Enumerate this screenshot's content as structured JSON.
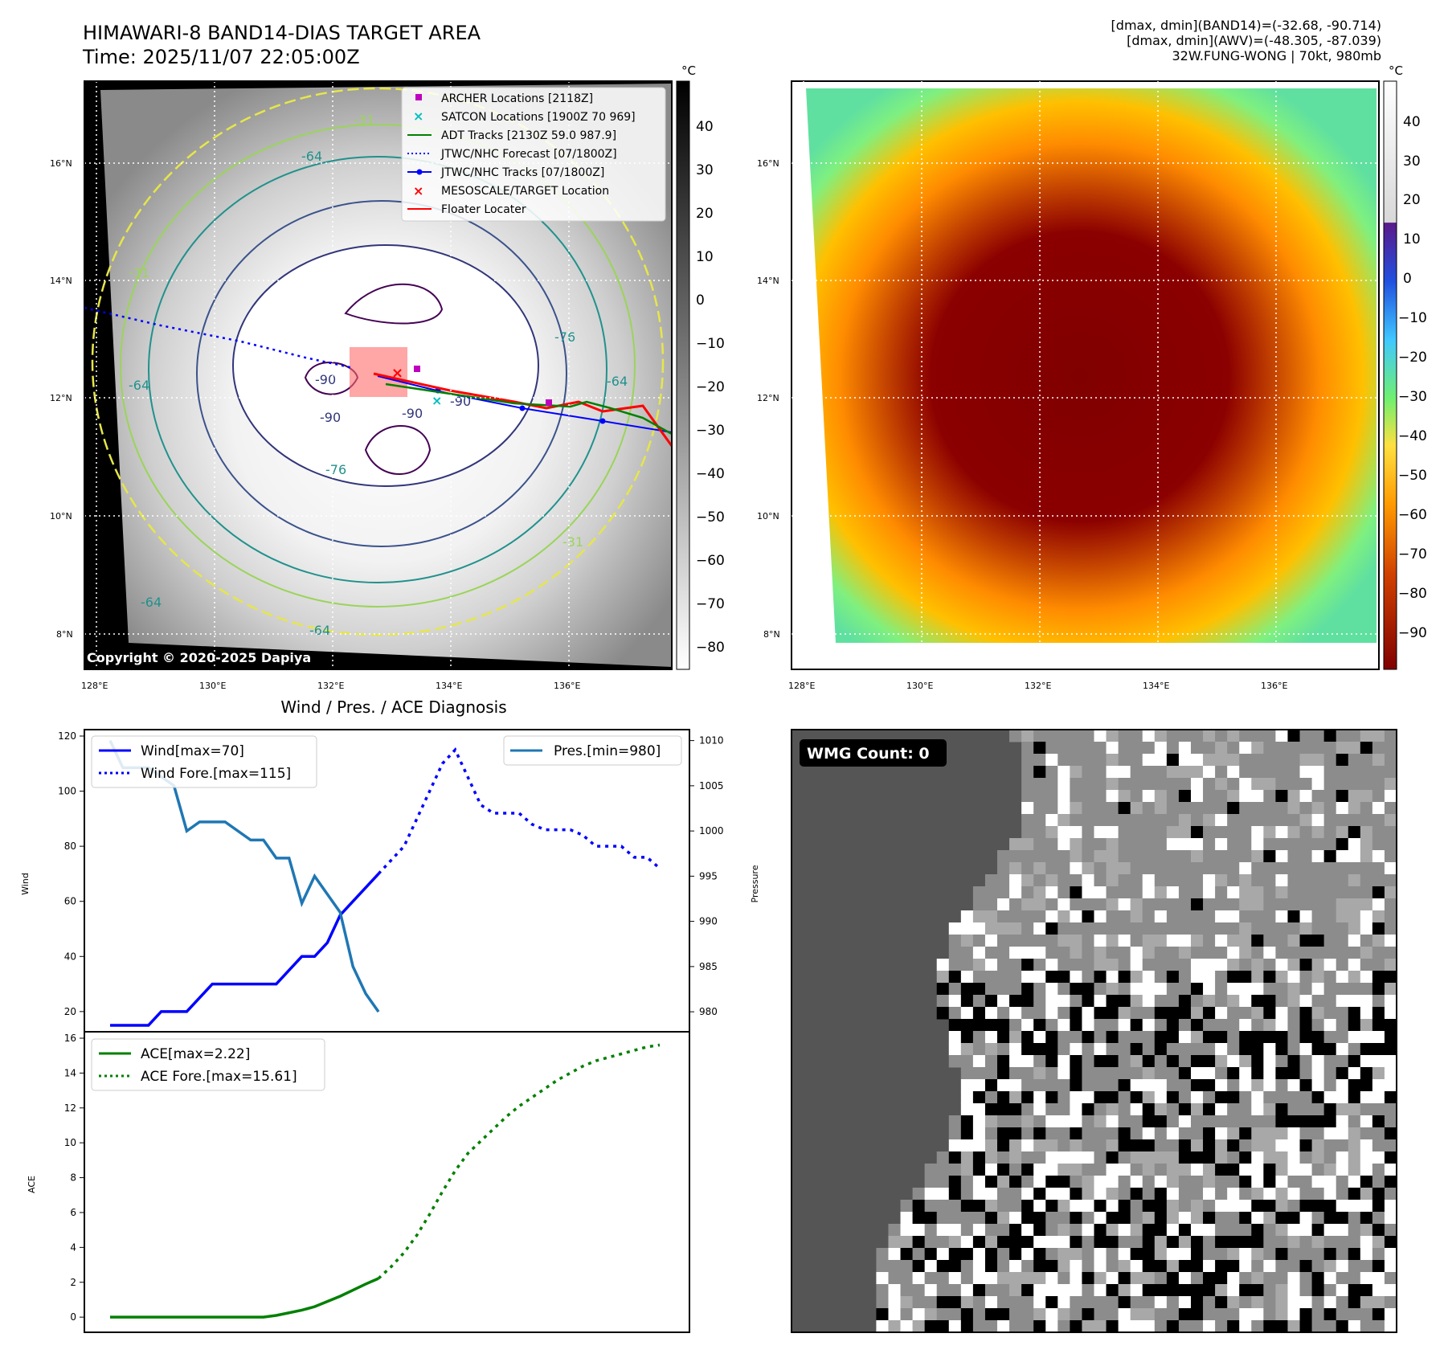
{
  "header": {
    "title_line1": "HIMAWARI-8 BAND14-DIAS TARGET AREA",
    "title_line2": "Time: 2025/11/07 22:05:00Z",
    "dmax_band14": "[dmax, dmin](BAND14)=(-32.68, -90.714)",
    "dmax_awv": "[dmax, dmin](AWV)=(-48.305, -87.039)",
    "storm_info": "32W.FUNG-WONG | 70kt, 980mb"
  },
  "map_panel": {
    "lon_ticks": [
      "128°E",
      "130°E",
      "132°E",
      "134°E",
      "136°E"
    ],
    "lat_ticks": [
      "16°N",
      "14°N",
      "12°N",
      "10°N",
      "8°N"
    ],
    "copyright": "Copyright © 2020-2025 Dapiya",
    "contour_labels": [
      "-90",
      "-90",
      "-90",
      "-90",
      "-76",
      "-76",
      "-64",
      "-64",
      "-64",
      "-64",
      "-64",
      "-31",
      "-31",
      "-31"
    ],
    "legend": [
      {
        "label": "ARCHER Locations [2118Z]",
        "marker": "square",
        "color": "#bf00bf"
      },
      {
        "label": "SATCON Locations [1900Z 70 969]",
        "marker": "x",
        "color": "#00bfbf"
      },
      {
        "label": "ADT Tracks [2130Z 59.0 987.9]",
        "marker": "line",
        "color": "#008000"
      },
      {
        "label": "JTWC/NHC Forecast [07/1800Z]",
        "marker": "dotted",
        "color": "#0000ff"
      },
      {
        "label": "JTWC/NHC Tracks [07/1800Z]",
        "marker": "line-dot",
        "color": "#0000ff"
      },
      {
        "label": "MESOSCALE/TARGET Location",
        "marker": "x",
        "color": "#ff0000"
      },
      {
        "label": "Floater Locater",
        "marker": "line",
        "color": "#ff0000"
      }
    ],
    "colorbar_unit": "°C",
    "colorbar_ticks": [
      "40",
      "30",
      "20",
      "10",
      "0",
      "−10",
      "−20",
      "−30",
      "−40",
      "−50",
      "−60",
      "−70",
      "−80"
    ]
  },
  "awv_panel": {
    "lon_ticks": [
      "128°E",
      "130°E",
      "132°E",
      "134°E",
      "136°E"
    ],
    "lat_ticks": [
      "16°N",
      "14°N",
      "12°N",
      "10°N",
      "8°N"
    ],
    "colorbar_unit": "°C",
    "colorbar_ticks": [
      "40",
      "30",
      "20",
      "10",
      "0",
      "−10",
      "−20",
      "−30",
      "−40",
      "−50",
      "−60",
      "−70",
      "−80",
      "−90"
    ]
  },
  "wmg_panel": {
    "label": "WMG Count: 0"
  },
  "chart_data": [
    {
      "type": "line",
      "title": "Wind / Pres. / ACE Diagnosis",
      "ylabel": "Wind",
      "ylabel_right": "Pressure",
      "ylim": [
        15,
        120
      ],
      "ylim_right": [
        978.5,
        1010.5
      ],
      "yticks": [
        "120",
        "100",
        "80",
        "60",
        "40",
        "20"
      ],
      "yticks_right": [
        "1010",
        "1005",
        "1000",
        "995",
        "990",
        "985",
        "980"
      ],
      "x": [
        0,
        1,
        2,
        3,
        4,
        5,
        6,
        7,
        8,
        9,
        10,
        11,
        12,
        13,
        14,
        15,
        16,
        17,
        18,
        19,
        20,
        21,
        22,
        23,
        24,
        25,
        26,
        27,
        28,
        29,
        30,
        31,
        32,
        33,
        34,
        35,
        36,
        37,
        38,
        39,
        40,
        41,
        42,
        43
      ],
      "series": [
        {
          "name": "Wind[max=70]",
          "color": "#0000ff",
          "style": "solid",
          "x": [
            0,
            1,
            2,
            3,
            4,
            5,
            6,
            7,
            8,
            9,
            10,
            11,
            12,
            13,
            14,
            15,
            16,
            17,
            18,
            19,
            20,
            21
          ],
          "values": [
            15,
            15,
            15,
            15,
            20,
            20,
            20,
            25,
            30,
            30,
            30,
            30,
            30,
            30,
            35,
            40,
            40,
            45,
            55,
            60,
            65,
            70
          ]
        },
        {
          "name": "Wind Fore.[max=115]",
          "color": "#0000ff",
          "style": "dotted",
          "x": [
            21,
            22,
            23,
            24,
            25,
            26,
            27,
            28,
            29,
            30,
            31,
            32,
            33,
            34,
            35,
            36,
            37,
            38,
            39,
            40,
            41,
            42,
            43
          ],
          "values": [
            70,
            75,
            80,
            90,
            100,
            110,
            115,
            105,
            95,
            92,
            92,
            92,
            88,
            86,
            86,
            86,
            84,
            80,
            80,
            80,
            76,
            76,
            72
          ]
        },
        {
          "name": "Pres.[min=980]",
          "color": "#1f77b4",
          "style": "solid",
          "axis": "right",
          "x": [
            0,
            1,
            2,
            3,
            4,
            5,
            6,
            7,
            8,
            9,
            10,
            11,
            12,
            13,
            14,
            15,
            16,
            17,
            18,
            19,
            20,
            21
          ],
          "values": [
            1010,
            1007,
            1007,
            1007,
            1006,
            1005,
            1000,
            1001,
            1001,
            1001,
            1000,
            999,
            999,
            997,
            997,
            992,
            995,
            993,
            991,
            985,
            982,
            980
          ]
        }
      ]
    },
    {
      "type": "line",
      "ylabel": "ACE",
      "ylim": [
        -0.5,
        16
      ],
      "yticks": [
        "16",
        "14",
        "12",
        "10",
        "8",
        "6",
        "4",
        "2",
        "0"
      ],
      "series": [
        {
          "name": "ACE[max=2.22]",
          "color": "#008000",
          "style": "solid",
          "x": [
            0,
            1,
            2,
            3,
            4,
            5,
            6,
            7,
            8,
            9,
            10,
            11,
            12,
            13,
            14,
            15,
            16,
            17,
            18,
            19,
            20,
            21
          ],
          "values": [
            0,
            0,
            0,
            0,
            0,
            0,
            0,
            0,
            0,
            0,
            0,
            0,
            0,
            0.1,
            0.25,
            0.4,
            0.6,
            0.9,
            1.2,
            1.55,
            1.9,
            2.22
          ]
        },
        {
          "name": "ACE Fore.[max=15.61]",
          "color": "#008000",
          "style": "dotted",
          "x": [
            21,
            22,
            23,
            24,
            25,
            26,
            27,
            28,
            29,
            30,
            31,
            32,
            33,
            34,
            35,
            36,
            37,
            38,
            39,
            40,
            41,
            42,
            43
          ],
          "values": [
            2.22,
            2.9,
            3.7,
            4.7,
            5.9,
            7.2,
            8.4,
            9.4,
            10.1,
            10.8,
            11.5,
            12.1,
            12.6,
            13.1,
            13.6,
            14.0,
            14.4,
            14.7,
            14.9,
            15.1,
            15.3,
            15.5,
            15.61
          ]
        }
      ]
    }
  ]
}
